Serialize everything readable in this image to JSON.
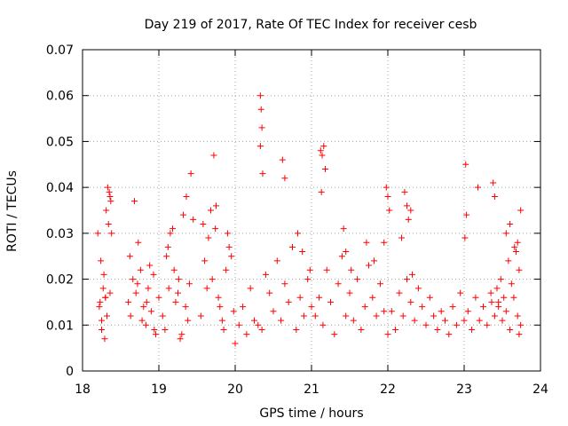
{
  "chart_data": {
    "type": "scatter",
    "title": "Day 219 of 2017, Rate Of TEC Index for receiver cesb",
    "xlabel": "GPS time / hours",
    "ylabel": "ROTI / TECUs",
    "xlim": [
      18,
      24
    ],
    "ylim": [
      0,
      0.07
    ],
    "x_ticks": [
      "18",
      "19",
      "20",
      "21",
      "22",
      "23",
      "24"
    ],
    "y_ticks": [
      "0",
      "0.01",
      "0.02",
      "0.03",
      "0.04",
      "0.05",
      "0.06",
      "0.07"
    ],
    "grid": true,
    "marker": "+",
    "color": "#ff0000",
    "series": [
      {
        "name": "cesb",
        "x": [
          18.22,
          18.24,
          18.27,
          18.3,
          18.33,
          18.35,
          18.37,
          18.38,
          18.2,
          18.25,
          18.29,
          18.32,
          18.36,
          18.23,
          18.28,
          18.31,
          18.34,
          18.36,
          18.25,
          18.3,
          18.6,
          18.63,
          18.66,
          18.7,
          18.73,
          18.76,
          18.8,
          18.83,
          18.86,
          18.9,
          18.93,
          18.96,
          19.0,
          18.62,
          18.68,
          18.72,
          18.78,
          18.84,
          18.88,
          18.94,
          19.05,
          19.1,
          19.15,
          19.2,
          19.25,
          19.3,
          19.35,
          19.4,
          19.45,
          19.08,
          19.12,
          19.18,
          19.22,
          19.28,
          19.32,
          19.38,
          19.42,
          19.13,
          19.26,
          19.36,
          19.55,
          19.6,
          19.65,
          19.7,
          19.75,
          19.8,
          19.85,
          19.9,
          19.95,
          20.0,
          19.58,
          19.63,
          19.68,
          19.72,
          19.78,
          19.83,
          19.88,
          19.92,
          19.98,
          19.74,
          20.05,
          20.1,
          20.15,
          20.2,
          20.25,
          20.3,
          20.35,
          20.4,
          20.45,
          20.5,
          20.55,
          20.6,
          20.65,
          20.7,
          20.75,
          20.8,
          20.85,
          20.9,
          20.95,
          21.0,
          20.33,
          20.34,
          20.35,
          20.33,
          20.36,
          20.62,
          20.65,
          20.82,
          20.88,
          20.98,
          21.05,
          21.1,
          21.15,
          21.2,
          21.25,
          21.3,
          21.35,
          21.4,
          21.45,
          21.5,
          21.55,
          21.6,
          21.65,
          21.7,
          21.75,
          21.8,
          21.85,
          21.9,
          21.95,
          22.0,
          21.12,
          21.14,
          21.16,
          21.13,
          21.18,
          21.42,
          21.45,
          21.52,
          21.72,
          21.82,
          22.05,
          22.1,
          22.15,
          22.2,
          22.25,
          22.3,
          22.35,
          22.4,
          22.45,
          22.5,
          22.55,
          22.6,
          22.65,
          22.7,
          22.75,
          22.8,
          22.85,
          22.9,
          22.95,
          23.0,
          21.98,
          22.0,
          22.02,
          22.22,
          22.25,
          22.27,
          22.3,
          21.95,
          22.18,
          22.32,
          23.05,
          23.1,
          23.15,
          23.2,
          23.25,
          23.3,
          23.35,
          23.4,
          23.45,
          23.5,
          23.55,
          23.6,
          23.65,
          23.7,
          23.72,
          23.74,
          23.02,
          23.03,
          23.01,
          23.18,
          23.38,
          23.4,
          23.55,
          23.6,
          23.66,
          23.68,
          23.72,
          23.74,
          23.58,
          23.62,
          23.7,
          23.52,
          23.48,
          23.45,
          23.43,
          23.36
        ],
        "y": [
          0.014,
          0.024,
          0.018,
          0.016,
          0.04,
          0.039,
          0.037,
          0.03,
          0.03,
          0.009,
          0.007,
          0.012,
          0.017,
          0.015,
          0.021,
          0.035,
          0.032,
          0.038,
          0.011,
          0.016,
          0.015,
          0.012,
          0.02,
          0.017,
          0.028,
          0.022,
          0.014,
          0.01,
          0.018,
          0.013,
          0.021,
          0.008,
          0.016,
          0.025,
          0.037,
          0.019,
          0.011,
          0.015,
          0.023,
          0.009,
          0.012,
          0.025,
          0.03,
          0.022,
          0.017,
          0.008,
          0.014,
          0.019,
          0.033,
          0.009,
          0.027,
          0.031,
          0.015,
          0.007,
          0.034,
          0.011,
          0.043,
          0.018,
          0.02,
          0.038,
          0.012,
          0.024,
          0.029,
          0.02,
          0.036,
          0.014,
          0.009,
          0.03,
          0.025,
          0.006,
          0.032,
          0.018,
          0.035,
          0.047,
          0.016,
          0.011,
          0.022,
          0.027,
          0.013,
          0.031,
          0.01,
          0.014,
          0.008,
          0.018,
          0.011,
          0.01,
          0.009,
          0.021,
          0.017,
          0.013,
          0.024,
          0.011,
          0.019,
          0.015,
          0.027,
          0.009,
          0.016,
          0.012,
          0.02,
          0.014,
          0.06,
          0.057,
          0.053,
          0.049,
          0.043,
          0.046,
          0.042,
          0.03,
          0.026,
          0.022,
          0.012,
          0.016,
          0.01,
          0.022,
          0.015,
          0.008,
          0.019,
          0.025,
          0.012,
          0.017,
          0.011,
          0.02,
          0.009,
          0.014,
          0.023,
          0.016,
          0.012,
          0.019,
          0.013,
          0.008,
          0.048,
          0.047,
          0.049,
          0.039,
          0.044,
          0.031,
          0.026,
          0.022,
          0.028,
          0.024,
          0.013,
          0.009,
          0.017,
          0.012,
          0.02,
          0.015,
          0.011,
          0.018,
          0.014,
          0.01,
          0.016,
          0.012,
          0.009,
          0.013,
          0.011,
          0.008,
          0.014,
          0.01,
          0.017,
          0.011,
          0.04,
          0.038,
          0.035,
          0.039,
          0.036,
          0.033,
          0.035,
          0.028,
          0.029,
          0.021,
          0.013,
          0.009,
          0.016,
          0.011,
          0.014,
          0.01,
          0.017,
          0.012,
          0.015,
          0.011,
          0.013,
          0.009,
          0.016,
          0.012,
          0.008,
          0.01,
          0.045,
          0.034,
          0.029,
          0.04,
          0.041,
          0.038,
          0.03,
          0.032,
          0.027,
          0.026,
          0.022,
          0.035,
          0.024,
          0.019,
          0.028,
          0.016,
          0.02,
          0.014,
          0.018,
          0.015
        ]
      }
    ]
  }
}
